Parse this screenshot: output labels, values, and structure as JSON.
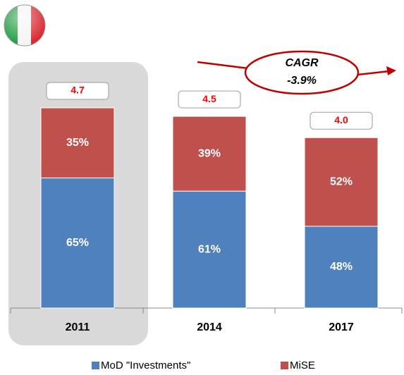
{
  "chart_data": {
    "type": "bar",
    "stacked": true,
    "categories": [
      "2011",
      "2014",
      "2017"
    ],
    "series": [
      {
        "name": "MoD \"Investments\"",
        "color": "#4f81bd",
        "values": [
          65,
          61,
          48
        ],
        "value_labels": [
          "65%",
          "61%",
          "48%"
        ]
      },
      {
        "name": "MiSE",
        "color": "#c0504d",
        "values": [
          35,
          39,
          52
        ],
        "value_labels": [
          "35%",
          "39%",
          "52%"
        ]
      }
    ],
    "totals": {
      "values": [
        4.7,
        4.5,
        4.0
      ],
      "value_labels": [
        "4.7",
        "4.5",
        "4.0"
      ],
      "color": "#ff0000"
    },
    "annotation": {
      "title": "CAGR",
      "value": "-3.9%"
    },
    "legend": "bottom"
  }
}
